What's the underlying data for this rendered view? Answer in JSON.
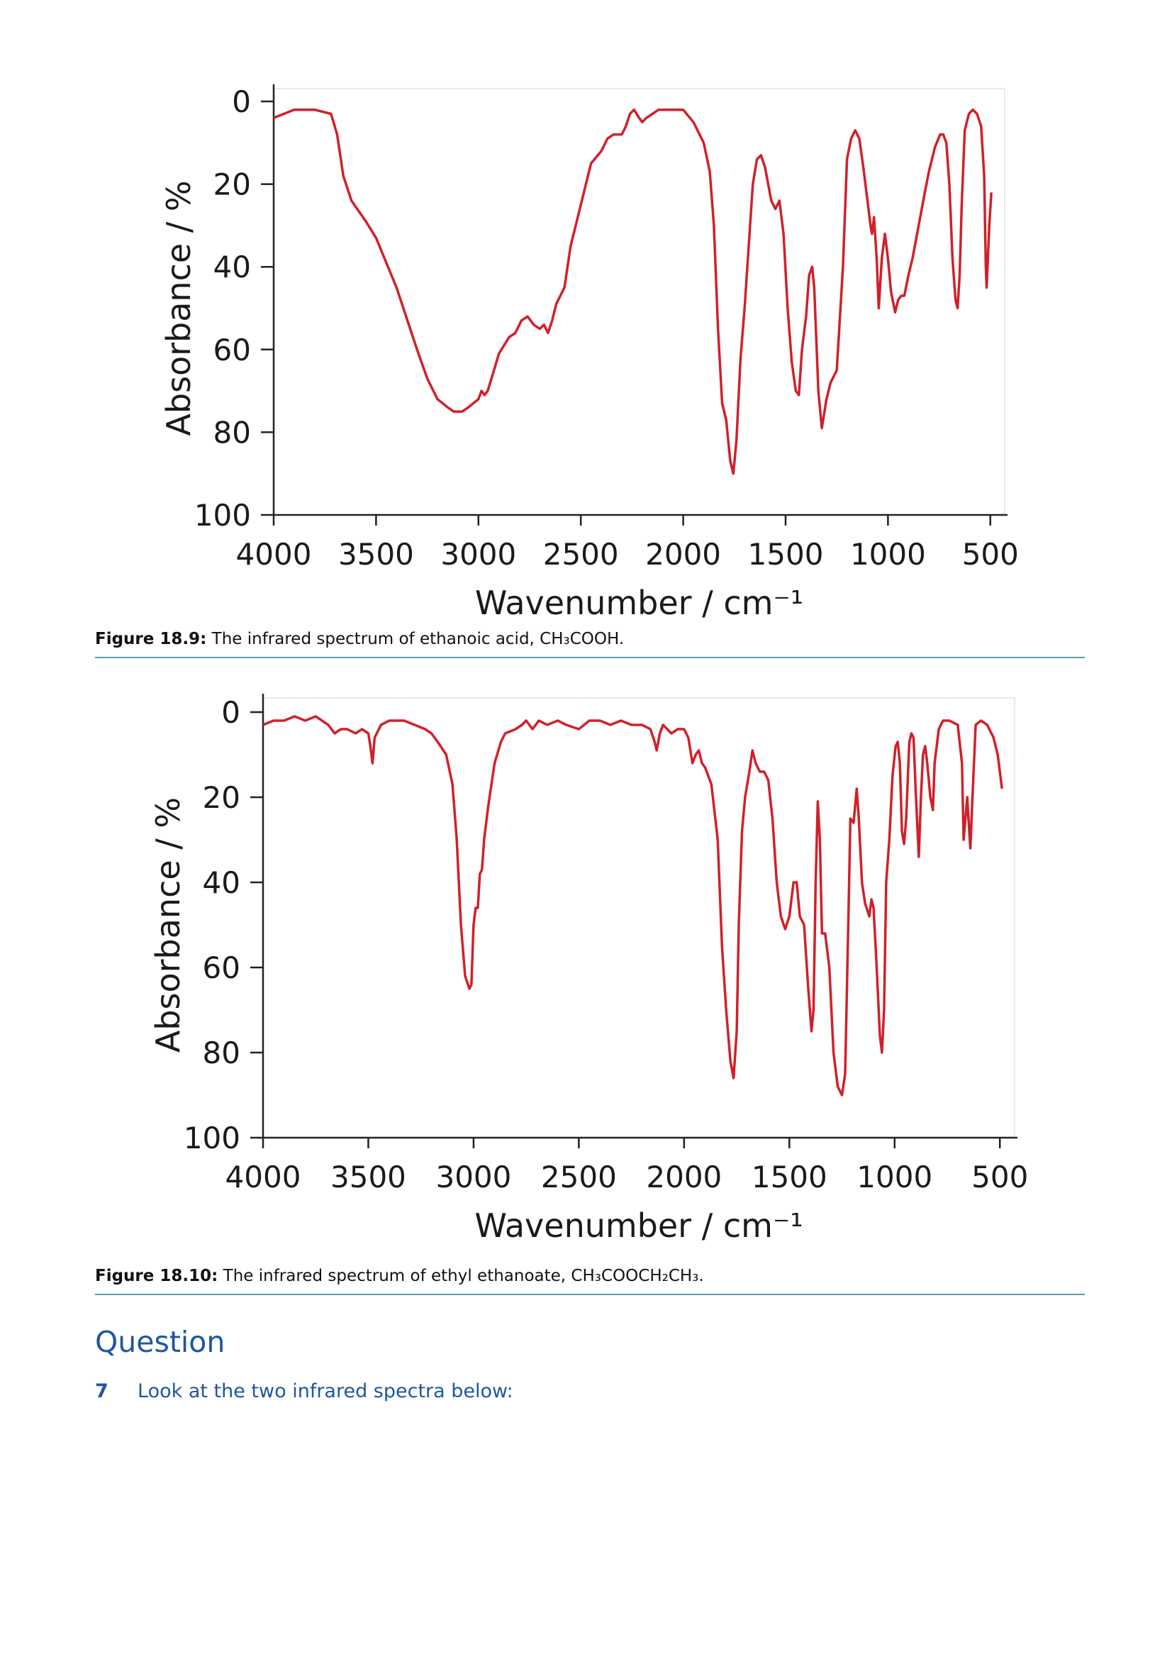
{
  "chart_data": [
    {
      "type": "line",
      "x_label": "Wavenumber / cm⁻¹",
      "y_label": "Absorbance / %",
      "color": "#d0202a",
      "grid": false,
      "y_inverted": true,
      "xlim": [
        4000,
        430
      ],
      "xticks": [
        4000,
        3500,
        3000,
        2500,
        2000,
        1500,
        1000,
        500
      ],
      "ylim": [
        0,
        100
      ],
      "yticks": [
        0,
        20,
        40,
        60,
        80,
        100
      ],
      "x": [
        4000,
        3900,
        3800,
        3720,
        3690,
        3660,
        3620,
        3550,
        3500,
        3400,
        3300,
        3250,
        3200,
        3150,
        3120,
        3080,
        3050,
        3000,
        2985,
        2970,
        2955,
        2930,
        2900,
        2850,
        2820,
        2790,
        2760,
        2730,
        2700,
        2680,
        2660,
        2640,
        2620,
        2600,
        2580,
        2550,
        2500,
        2450,
        2400,
        2370,
        2340,
        2300,
        2280,
        2260,
        2240,
        2215,
        2200,
        2180,
        2150,
        2120,
        2080,
        2040,
        2000,
        1950,
        1900,
        1870,
        1850,
        1830,
        1810,
        1790,
        1770,
        1755,
        1740,
        1720,
        1700,
        1680,
        1660,
        1640,
        1620,
        1600,
        1570,
        1550,
        1530,
        1510,
        1490,
        1470,
        1450,
        1435,
        1420,
        1400,
        1385,
        1370,
        1360,
        1340,
        1323,
        1300,
        1280,
        1250,
        1220,
        1200,
        1180,
        1170,
        1160,
        1140,
        1120,
        1100,
        1085,
        1078,
        1068,
        1055,
        1045,
        1030,
        1015,
        1000,
        985,
        965,
        950,
        935,
        920,
        900,
        880,
        850,
        820,
        800,
        770,
        745,
        730,
        715,
        700,
        685,
        670,
        660,
        650,
        640,
        625,
        605,
        585,
        565,
        545,
        530,
        522,
        518,
        505,
        495
      ],
      "values": [
        4,
        2,
        2,
        3,
        8,
        18,
        24,
        29,
        33,
        45,
        60,
        67,
        72,
        74,
        75,
        75,
        74,
        72,
        70,
        71,
        70,
        66,
        61,
        57,
        56,
        53,
        52,
        54,
        55,
        54,
        56,
        53,
        49,
        47,
        45,
        35,
        25,
        15,
        12,
        9,
        8,
        8,
        6,
        3,
        2,
        4,
        5,
        4,
        3,
        2,
        2,
        2,
        2,
        5,
        10,
        17,
        30,
        55,
        73,
        77,
        87,
        90,
        82,
        62,
        50,
        35,
        20,
        14,
        13,
        16,
        24,
        26,
        24,
        32,
        50,
        63,
        70,
        71,
        60,
        52,
        42,
        40,
        45,
        70,
        79,
        72,
        68,
        65,
        40,
        14,
        9,
        8,
        7,
        9,
        16,
        24,
        30,
        32,
        28,
        38,
        50,
        38,
        32,
        38,
        46,
        51,
        48,
        47,
        47,
        42,
        38,
        30,
        22,
        17,
        11,
        8,
        8,
        10,
        20,
        38,
        48,
        50,
        42,
        25,
        7,
        3,
        2,
        3,
        6,
        18,
        40,
        45,
        30,
        22
      ]
    },
    {
      "type": "line",
      "x_label": "Wavenumber / cm⁻¹",
      "y_label": "Absorbance / %",
      "color": "#d0202a",
      "grid": false,
      "y_inverted": true,
      "xlim": [
        4000,
        430
      ],
      "xticks": [
        4000,
        3500,
        3000,
        2500,
        2000,
        1500,
        1000,
        500
      ],
      "ylim": [
        0,
        100
      ],
      "yticks": [
        0,
        20,
        40,
        60,
        80,
        100
      ],
      "x": [
        4000,
        3950,
        3900,
        3850,
        3800,
        3750,
        3720,
        3690,
        3660,
        3630,
        3600,
        3560,
        3530,
        3500,
        3490,
        3480,
        3470,
        3440,
        3400,
        3330,
        3280,
        3230,
        3200,
        3170,
        3130,
        3100,
        3080,
        3060,
        3040,
        3020,
        3010,
        3000,
        2990,
        2980,
        2970,
        2960,
        2950,
        2930,
        2900,
        2870,
        2850,
        2800,
        2770,
        2750,
        2720,
        2690,
        2650,
        2600,
        2560,
        2500,
        2450,
        2400,
        2350,
        2300,
        2250,
        2200,
        2160,
        2140,
        2130,
        2115,
        2100,
        2080,
        2060,
        2030,
        2000,
        1980,
        1960,
        1945,
        1930,
        1915,
        1900,
        1870,
        1840,
        1820,
        1800,
        1780,
        1765,
        1750,
        1740,
        1725,
        1710,
        1690,
        1675,
        1660,
        1640,
        1620,
        1600,
        1580,
        1560,
        1540,
        1520,
        1500,
        1480,
        1465,
        1450,
        1430,
        1410,
        1395,
        1385,
        1375,
        1365,
        1355,
        1345,
        1330,
        1310,
        1290,
        1270,
        1250,
        1235,
        1220,
        1210,
        1195,
        1180,
        1170,
        1155,
        1140,
        1120,
        1110,
        1100,
        1085,
        1070,
        1060,
        1050,
        1040,
        1025,
        1010,
        995,
        985,
        975,
        965,
        955,
        945,
        930,
        920,
        910,
        900,
        885,
        875,
        865,
        855,
        845,
        830,
        818,
        810,
        790,
        770,
        740,
        700,
        680,
        672,
        665,
        655,
        648,
        640,
        630,
        615,
        590,
        560,
        530,
        510,
        495,
        490
      ],
      "values": [
        3,
        2,
        2,
        1,
        2,
        1,
        2,
        3,
        5,
        4,
        4,
        5,
        4,
        5,
        8,
        12,
        6,
        3,
        2,
        2,
        3,
        4,
        5,
        7,
        10,
        17,
        30,
        50,
        62,
        65,
        64,
        50,
        46,
        46,
        38,
        37,
        30,
        22,
        12,
        7,
        5,
        4,
        3,
        2,
        4,
        2,
        3,
        2,
        3,
        4,
        2,
        2,
        3,
        2,
        3,
        3,
        4,
        7,
        9,
        5,
        3,
        4,
        5,
        4,
        4,
        6,
        12,
        10,
        9,
        12,
        13,
        17,
        30,
        55,
        70,
        82,
        86,
        75,
        50,
        28,
        20,
        14,
        9,
        12,
        14,
        14,
        16,
        25,
        40,
        48,
        51,
        48,
        40,
        40,
        48,
        50,
        65,
        75,
        70,
        40,
        21,
        30,
        52,
        52,
        60,
        80,
        88,
        90,
        85,
        50,
        25,
        26,
        18,
        25,
        40,
        45,
        48,
        44,
        46,
        60,
        76,
        80,
        70,
        40,
        30,
        15,
        8,
        7,
        12,
        28,
        31,
        25,
        7,
        5,
        6,
        18,
        34,
        20,
        10,
        8,
        12,
        20,
        23,
        12,
        4,
        2,
        2,
        3,
        12,
        30,
        26,
        20,
        26,
        32,
        20,
        3,
        2,
        3,
        6,
        10,
        16,
        18
      ]
    }
  ],
  "document": {
    "figures": [
      {
        "label": "Figure 18.9:",
        "caption": "The infrared spectrum of ethanoic acid, CH₃COOH."
      },
      {
        "label": "Figure 18.10:",
        "caption": "The infrared spectrum of ethyl ethanoate, CH₃COOCH₂CH₃."
      }
    ],
    "heading": "Question",
    "question": {
      "number": "7",
      "text": "Look at the two infrared spectra below:"
    }
  }
}
